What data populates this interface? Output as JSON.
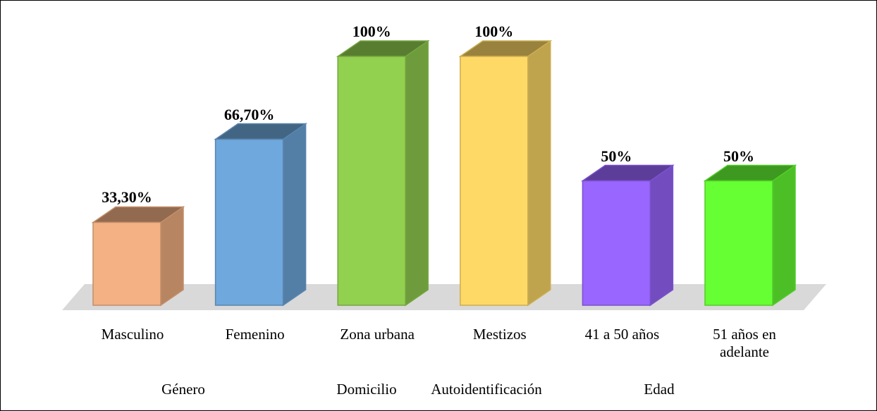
{
  "chart_data": {
    "type": "bar3d",
    "categories": [
      "Masculino",
      "Femenino",
      "Zona urbana",
      "Mestizos",
      "41 a 50 años",
      "51 años en adelante"
    ],
    "values": [
      33.3,
      66.7,
      100,
      100,
      50,
      50
    ],
    "value_labels": [
      "33,30%",
      "66,70%",
      "100%",
      "100%",
      "50%",
      "50%"
    ],
    "colors": [
      "#f4b183",
      "#6fa8dc",
      "#92d050",
      "#ffd966",
      "#9966ff",
      "#66ff33"
    ],
    "groups": [
      "Género",
      "Domicilio",
      "Autoidentificación",
      "Edad"
    ]
  }
}
